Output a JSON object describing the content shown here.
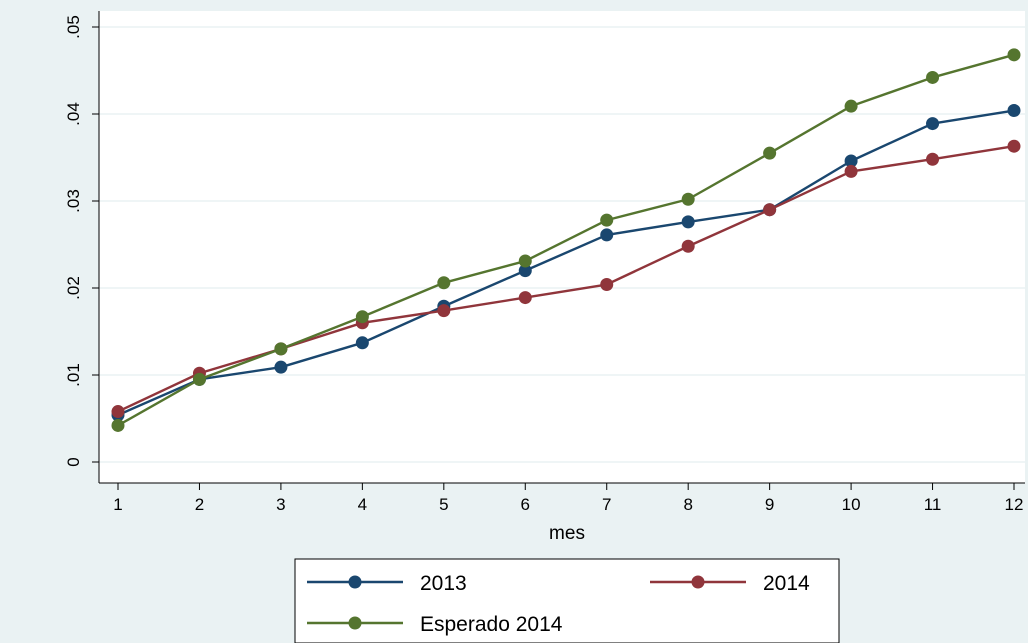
{
  "chart_data": {
    "type": "line",
    "title": "",
    "xlabel": "mes",
    "ylabel": "",
    "x": [
      1,
      2,
      3,
      4,
      5,
      6,
      7,
      8,
      9,
      10,
      11,
      12
    ],
    "xticks": [
      "1",
      "2",
      "3",
      "4",
      "5",
      "6",
      "7",
      "8",
      "9",
      "10",
      "11",
      "12"
    ],
    "yticks": [
      {
        "value": 0,
        "label": "0"
      },
      {
        "value": 0.01,
        "label": ".01"
      },
      {
        "value": 0.02,
        "label": ".02"
      },
      {
        "value": 0.03,
        "label": ".03"
      },
      {
        "value": 0.04,
        "label": ".04"
      },
      {
        "value": 0.05,
        "label": ".05"
      }
    ],
    "xlim": [
      1,
      12
    ],
    "ylim": [
      0,
      0.05
    ],
    "grid": "horizontal",
    "legend_position": "bottom",
    "series": [
      {
        "name": "2013",
        "color": "#1a476f",
        "values": [
          0.0054,
          0.0095,
          0.0109,
          0.0137,
          0.0179,
          0.022,
          0.0261,
          0.0276,
          0.029,
          0.0346,
          0.0389,
          0.0404
        ]
      },
      {
        "name": "2014",
        "color": "#90353b",
        "values": [
          0.0058,
          0.0102,
          0.013,
          0.016,
          0.0174,
          0.0189,
          0.0204,
          0.0248,
          0.029,
          0.0334,
          0.0348,
          0.0363
        ]
      },
      {
        "name": "Esperado 2014",
        "color": "#55752f",
        "values": [
          0.0042,
          0.0095,
          0.013,
          0.0167,
          0.0206,
          0.0231,
          0.0278,
          0.0302,
          0.0355,
          0.0409,
          0.0442,
          0.0468
        ]
      }
    ]
  }
}
